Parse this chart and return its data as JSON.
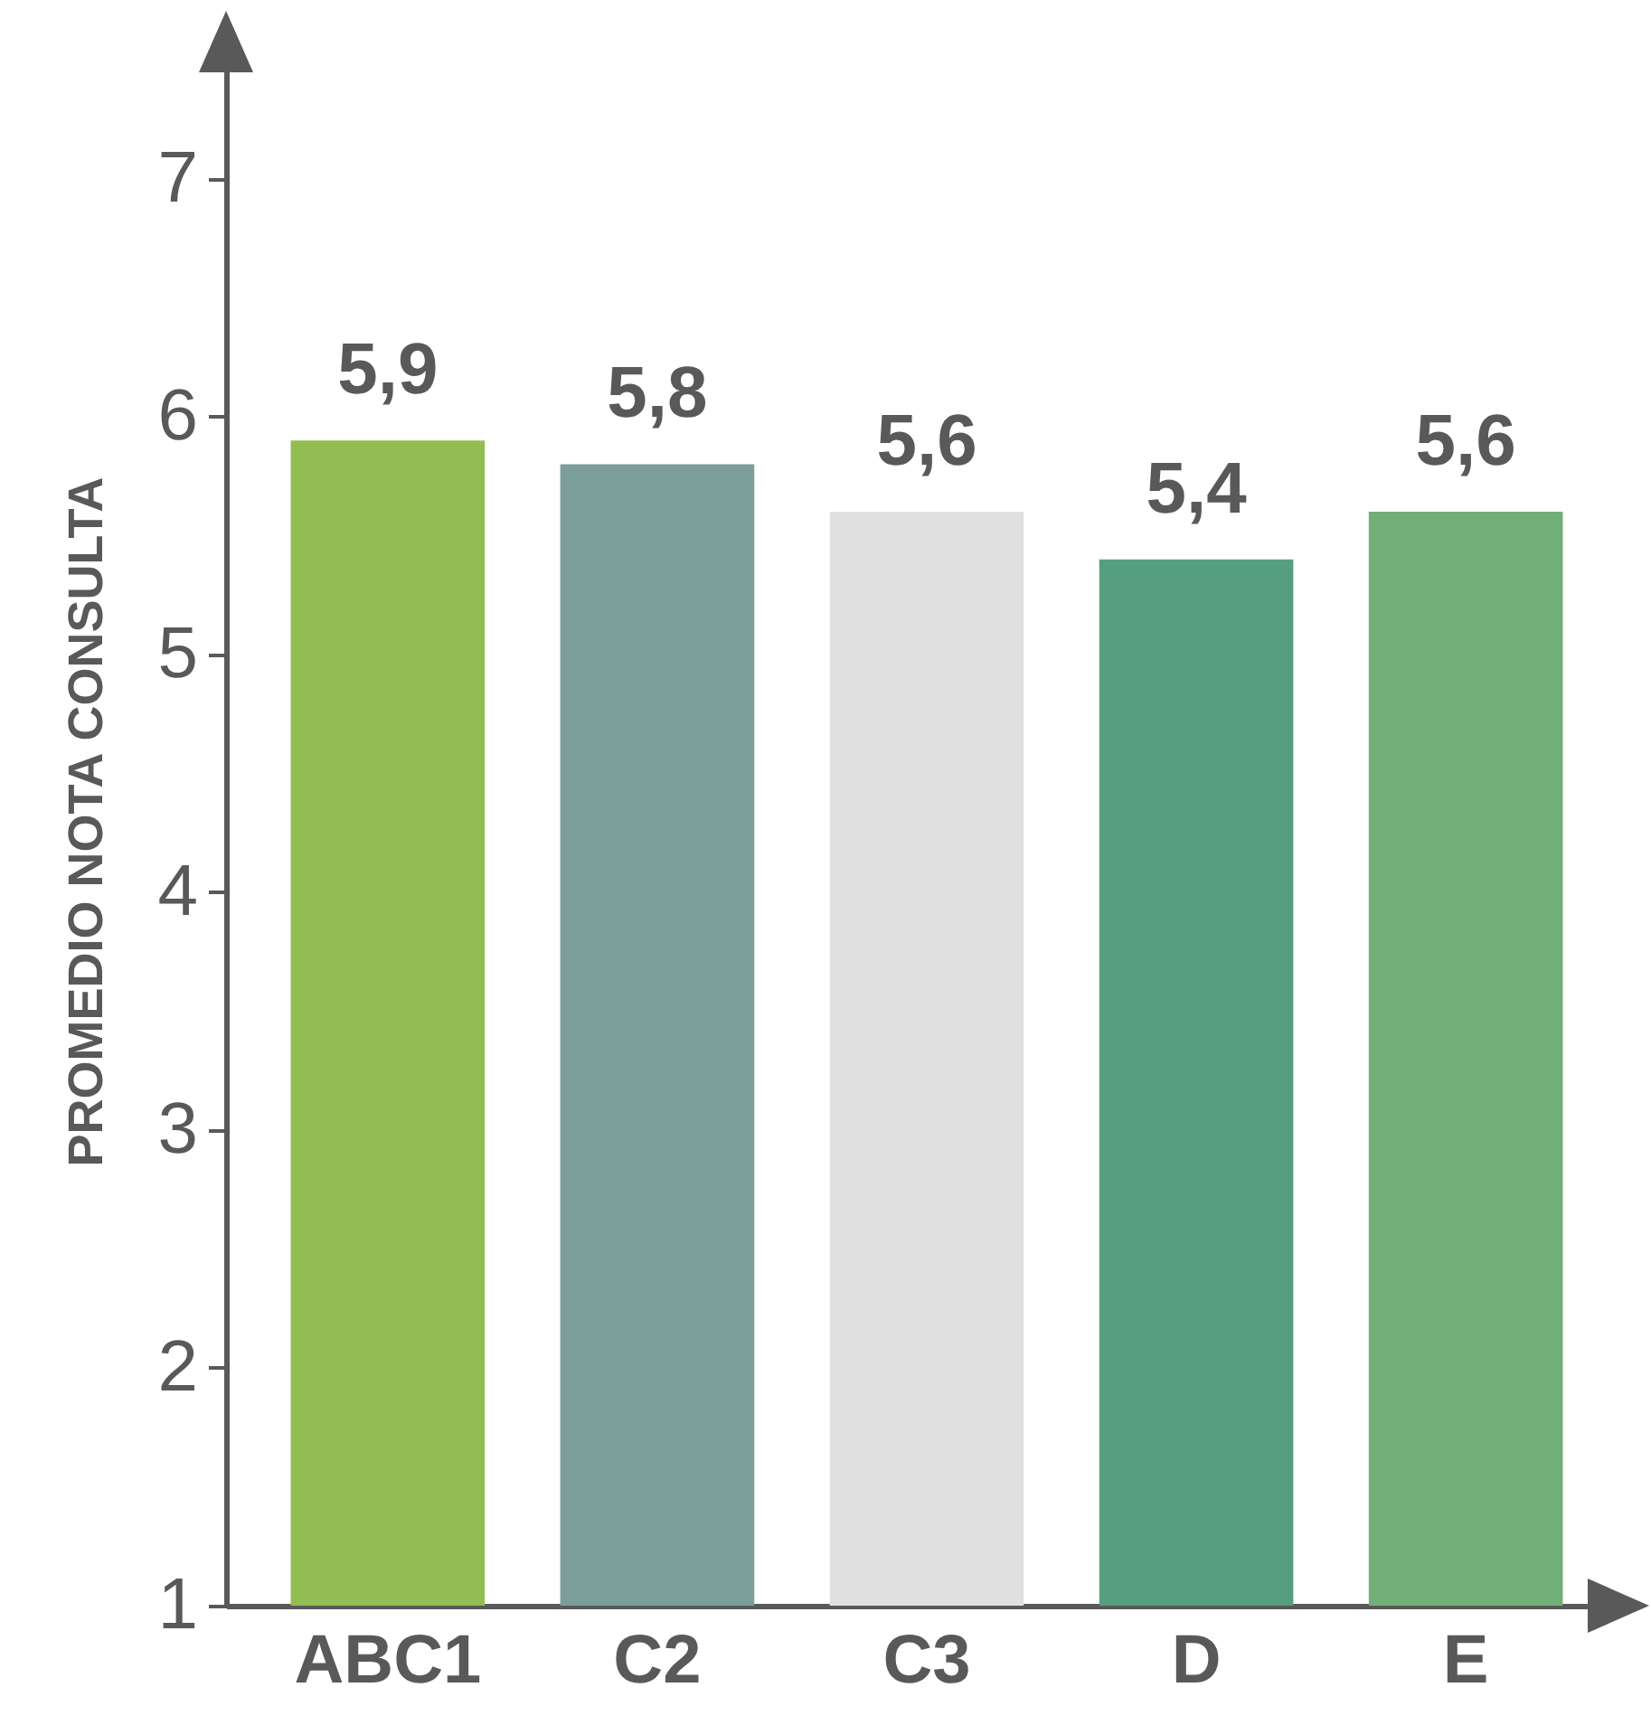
{
  "chart_data": {
    "type": "bar",
    "ylabel": "PROMEDIO NOTA CONSULTA",
    "categories": [
      "ABC1",
      "C2",
      "C3",
      "D",
      "E"
    ],
    "values": [
      5.9,
      5.8,
      5.6,
      5.4,
      5.6
    ],
    "value_labels": [
      "5,9",
      "5,8",
      "5,6",
      "5,4",
      "5,6"
    ],
    "colors": [
      "#92bd52",
      "#7c9e98",
      "#e0e0e0",
      "#559f80",
      "#72ae77"
    ],
    "ylim": [
      1,
      7.6
    ],
    "yticks": [
      1,
      2,
      3,
      4,
      5,
      6,
      7
    ],
    "grid": false
  }
}
